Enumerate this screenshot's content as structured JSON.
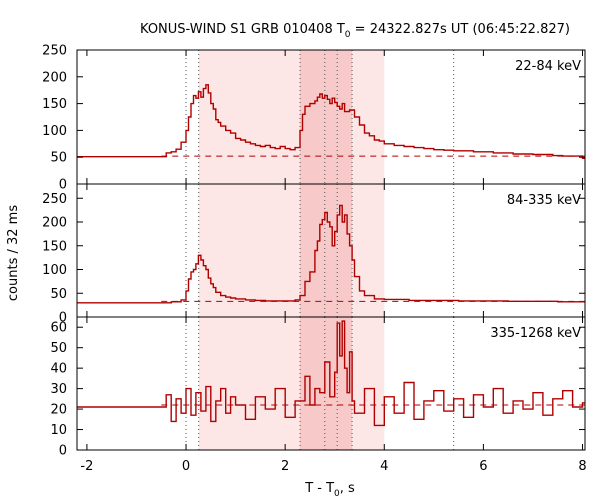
{
  "title": "KONUS-WIND S1 GRB 010408 T₀ = 24322.827s UT (06:45:22.827)",
  "title_parts": {
    "pre": "KONUS-WIND S1 GRB 010408 T",
    "sub": "0",
    "post": " = 24322.827s UT (06:45:22.827)"
  },
  "xlabel_parts": {
    "pre": "T - T",
    "sub": "0",
    "post": ", s"
  },
  "ylabel": "counts / 32 ms",
  "colors": {
    "data": "#b00000",
    "shade_light": "#fde6e6",
    "shade_mid": "#f7c9c9",
    "axis": "#000000"
  },
  "chart_data": {
    "type": "line",
    "title": "KONUS-WIND S1 GRB 010408 T₀ = 24322.827s UT (06:45:22.827)",
    "xlabel": "T - T₀, s",
    "ylabel": "counts / 32 ms",
    "xlim": [
      -2.2,
      8.05
    ],
    "xticks": [
      -2,
      0,
      2,
      4,
      6,
      8
    ],
    "shaded_intervals": [
      {
        "from": 0.256,
        "to": 4.0,
        "tone": "light"
      },
      {
        "from": 2.3,
        "to": 3.35,
        "tone": "mid"
      }
    ],
    "dotted_lines": [
      0.0,
      0.256,
      2.3,
      2.8,
      3.05,
      3.35,
      5.4
    ],
    "panels": [
      {
        "band": "22-84 keV",
        "ylim": [
          0,
          250
        ],
        "yticks": [
          0,
          50,
          100,
          150,
          200,
          250
        ],
        "background_level": 52,
        "pre_level": 51,
        "series": [
          {
            "t": [
              -2.2,
              -0.5,
              -0.4,
              -0.3,
              -0.2,
              -0.1,
              0.0,
              0.05,
              0.1,
              0.15,
              0.2,
              0.25,
              0.3,
              0.35,
              0.4,
              0.45,
              0.5,
              0.55,
              0.6,
              0.65,
              0.7,
              0.8,
              0.9,
              1.0,
              1.1,
              1.2,
              1.3,
              1.4,
              1.5,
              1.6,
              1.7,
              1.8,
              1.9,
              2.0,
              2.1,
              2.2,
              2.3,
              2.35,
              2.4,
              2.5,
              2.6,
              2.65,
              2.7,
              2.75,
              2.8,
              2.85,
              2.9,
              2.95,
              3.0,
              3.05,
              3.1,
              3.15,
              3.2,
              3.3,
              3.4,
              3.5,
              3.6,
              3.7,
              3.8,
              3.9,
              4.0,
              4.2,
              4.4,
              4.6,
              4.8,
              5.0,
              5.2,
              5.4,
              5.6,
              5.8,
              6.0,
              6.2,
              6.4,
              6.6,
              6.8,
              7.0,
              7.2,
              7.4,
              7.6,
              7.8,
              8.0
            ],
            "y": [
              51,
              51,
              58,
              60,
              65,
              78,
              100,
              125,
              150,
              165,
              160,
              172,
              162,
              178,
              185,
              170,
              150,
              140,
              120,
              115,
              108,
              100,
              95,
              85,
              82,
              78,
              75,
              72,
              70,
              72,
              68,
              66,
              70,
              66,
              64,
              68,
              100,
              130,
              145,
              150,
              155,
              162,
              168,
              160,
              165,
              158,
              150,
              160,
              152,
              145,
              140,
              150,
              135,
              138,
              125,
              110,
              95,
              90,
              82,
              80,
              75,
              72,
              70,
              68,
              66,
              64,
              63,
              62,
              62,
              60,
              60,
              58,
              58,
              56,
              56,
              55,
              55,
              53,
              52,
              52,
              48
            ]
          }
        ]
      },
      {
        "band": "84-335 keV",
        "ylim": [
          0,
          280
        ],
        "yticks": [
          0,
          50,
          100,
          150,
          200,
          250
        ],
        "background_level": 33,
        "pre_level": 30,
        "series": [
          {
            "t": [
              -2.2,
              -0.5,
              -0.3,
              -0.1,
              0.0,
              0.05,
              0.1,
              0.15,
              0.2,
              0.25,
              0.3,
              0.35,
              0.4,
              0.45,
              0.5,
              0.55,
              0.6,
              0.7,
              0.8,
              0.9,
              1.0,
              1.2,
              1.4,
              1.6,
              1.8,
              2.0,
              2.2,
              2.3,
              2.4,
              2.5,
              2.6,
              2.65,
              2.7,
              2.75,
              2.8,
              2.85,
              2.9,
              2.95,
              3.0,
              3.05,
              3.1,
              3.15,
              3.2,
              3.25,
              3.3,
              3.35,
              3.4,
              3.5,
              3.6,
              3.8,
              4.0,
              4.5,
              5.0,
              5.5,
              6.0,
              6.5,
              7.0,
              7.5,
              8.0
            ],
            "y": [
              30,
              30,
              32,
              36,
              55,
              80,
              95,
              100,
              112,
              130,
              120,
              108,
              100,
              82,
              70,
              62,
              52,
              45,
              42,
              40,
              38,
              36,
              35,
              34,
              34,
              34,
              36,
              45,
              75,
              95,
              140,
              160,
              195,
              205,
              220,
              200,
              190,
              150,
              180,
              215,
              235,
              200,
              215,
              175,
              150,
              120,
              85,
              55,
              45,
              38,
              37,
              35,
              35,
              34,
              34,
              33,
              33,
              32,
              32
            ]
          }
        ]
      },
      {
        "band": "335-1268 keV",
        "ylim": [
          0,
          65
        ],
        "yticks": [
          0,
          10,
          20,
          30,
          40,
          50,
          60
        ],
        "background_level": 22,
        "pre_level": 21,
        "series": [
          {
            "t": [
              -2.2,
              -0.5,
              -0.4,
              -0.3,
              -0.2,
              -0.1,
              0.0,
              0.1,
              0.2,
              0.3,
              0.4,
              0.5,
              0.6,
              0.7,
              0.8,
              0.9,
              1.0,
              1.2,
              1.4,
              1.6,
              1.8,
              2.0,
              2.2,
              2.4,
              2.5,
              2.6,
              2.7,
              2.8,
              2.9,
              3.0,
              3.05,
              3.1,
              3.15,
              3.2,
              3.25,
              3.3,
              3.35,
              3.4,
              3.6,
              3.8,
              4.0,
              4.2,
              4.4,
              4.6,
              4.8,
              5.0,
              5.2,
              5.4,
              5.6,
              5.8,
              6.0,
              6.2,
              6.4,
              6.6,
              6.8,
              7.0,
              7.2,
              7.4,
              7.6,
              7.8,
              8.0
            ],
            "y": [
              21,
              21,
              27,
              14,
              25,
              18,
              30,
              17,
              28,
              19,
              31,
              14,
              24,
              30,
              18,
              26,
              22,
              15,
              26,
              20,
              30,
              16,
              24,
              36,
              22,
              30,
              28,
              43,
              26,
              38,
              62,
              46,
              63,
              40,
              28,
              48,
              24,
              18,
              30,
              12,
              26,
              18,
              33,
              15,
              24,
              29,
              19,
              25,
              16,
              27,
              21,
              30,
              18,
              24,
              20,
              28,
              17,
              25,
              29,
              21,
              23
            ]
          }
        ]
      }
    ]
  }
}
